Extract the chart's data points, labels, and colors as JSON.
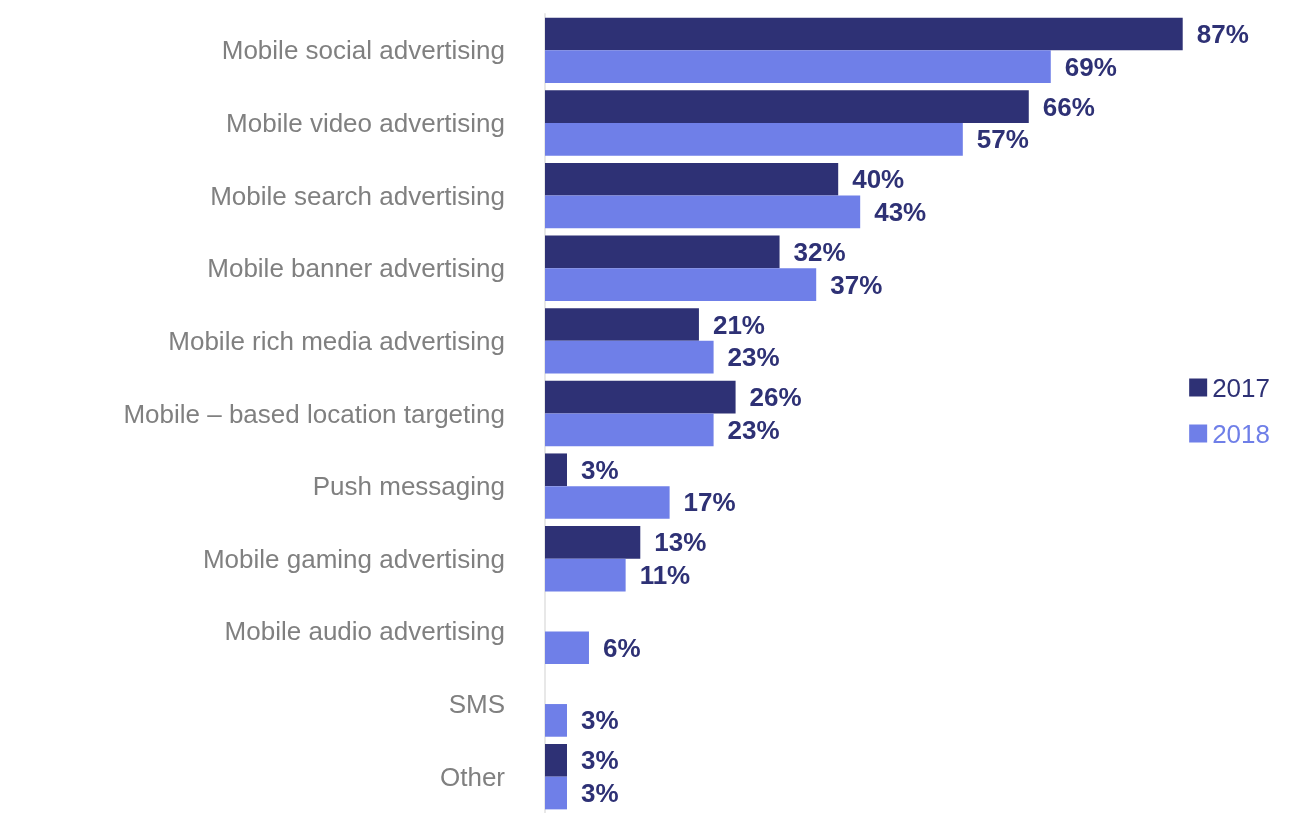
{
  "chart_data": {
    "type": "bar",
    "orientation": "horizontal",
    "categories": [
      "Mobile social advertising",
      "Mobile video advertising",
      "Mobile search advertising",
      "Mobile banner advertising",
      "Mobile rich media advertising",
      "Mobile – based location targeting",
      "Push messaging",
      "Mobile gaming advertising",
      "Mobile audio advertising",
      "SMS",
      "Other"
    ],
    "series": [
      {
        "name": "2017",
        "color": "#2e3175",
        "values": [
          87,
          66,
          40,
          32,
          21,
          26,
          3,
          13,
          null,
          null,
          3
        ],
        "value_labels": [
          "87%",
          "66%",
          "40%",
          "32%",
          "21%",
          "26%",
          "3%",
          "13%",
          null,
          null,
          "3%"
        ]
      },
      {
        "name": "2018",
        "color": "#6f7fe8",
        "values": [
          69,
          57,
          43,
          37,
          23,
          23,
          17,
          11,
          6,
          3,
          3
        ],
        "value_labels": [
          "69%",
          "57%",
          "43%",
          "37%",
          "23%",
          "23%",
          "17%",
          "11%",
          "6%",
          "3%",
          "3%"
        ]
      }
    ],
    "legend": "right"
  }
}
